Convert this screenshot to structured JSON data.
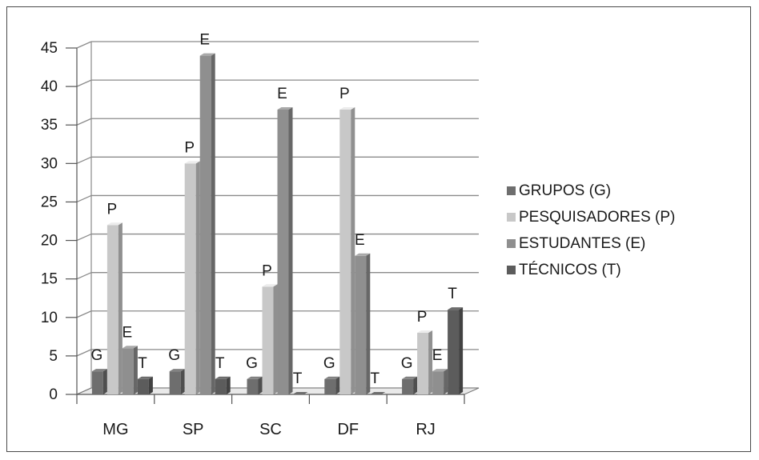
{
  "chart_data": {
    "type": "bar",
    "categories": [
      "MG",
      "SP",
      "SC",
      "DF",
      "RJ"
    ],
    "ylim": [
      0,
      45
    ],
    "yticks": [
      0,
      5,
      10,
      15,
      20,
      25,
      30,
      35,
      40,
      45
    ],
    "grid": true,
    "legend_position": "right",
    "series": [
      {
        "name": "GRUPOS (G)",
        "code": "G",
        "color": "#6e6e6e",
        "values": [
          3,
          3,
          2,
          2,
          2
        ]
      },
      {
        "name": "PESQUISADORES (P)",
        "code": "P",
        "color": "#c8c8c8",
        "values": [
          22,
          30,
          14,
          37,
          8
        ]
      },
      {
        "name": "ESTUDANTES (E)",
        "code": "E",
        "color": "#8f8f8f",
        "values": [
          6,
          44,
          37,
          18,
          3
        ]
      },
      {
        "name": "TÉCNICOS (T)",
        "code": "T",
        "color": "#5c5c5c",
        "values": [
          2,
          2,
          0,
          0,
          11
        ]
      }
    ]
  }
}
